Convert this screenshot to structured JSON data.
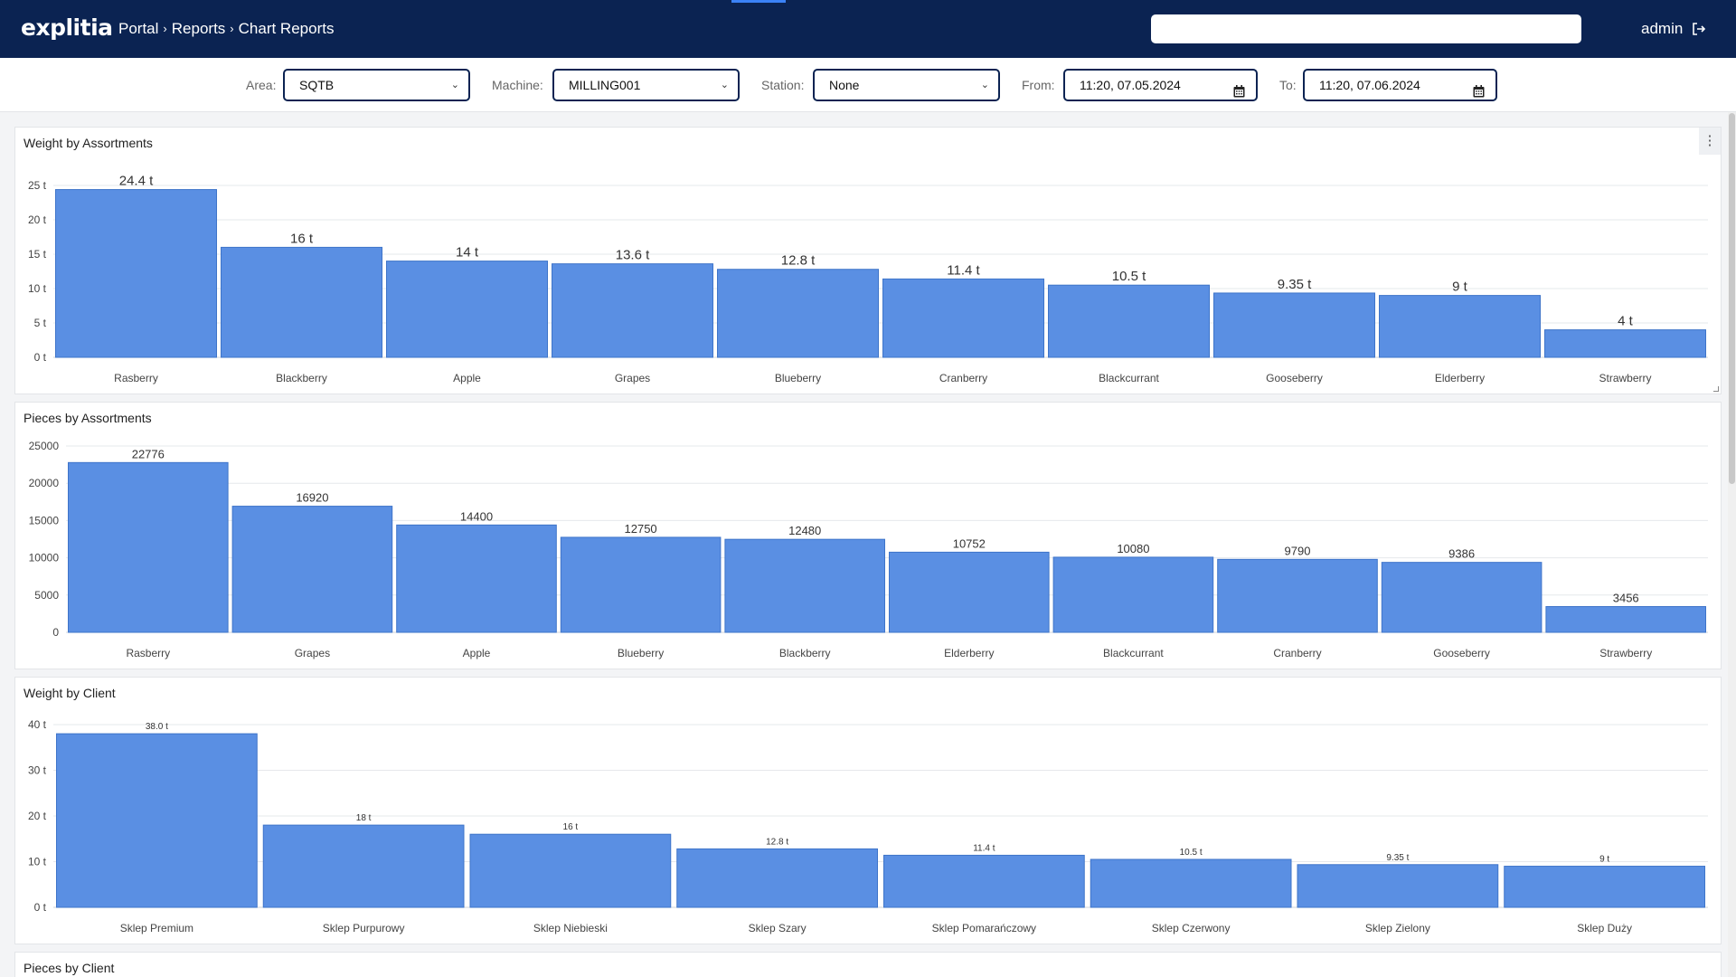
{
  "header": {
    "logo": "explitia",
    "breadcrumb": [
      "Portal",
      "Reports",
      "Chart Reports"
    ],
    "user": "admin",
    "search_value": ""
  },
  "filters": {
    "area": {
      "label": "Area:",
      "value": "SQTB"
    },
    "machine": {
      "label": "Machine:",
      "value": "MILLING001"
    },
    "station": {
      "label": "Station:",
      "value": "None"
    },
    "from": {
      "label": "From:",
      "value": "11:20, 07.05.2024"
    },
    "to": {
      "label": "To:",
      "value": "11:20, 07.06.2024"
    }
  },
  "colors": {
    "bar": "#5a8fe3",
    "bar_stroke": "#3e74c9",
    "header": "#0b2352"
  },
  "chart_data": [
    {
      "type": "bar",
      "title": "Weight by Assortments",
      "categories": [
        "Rasberry",
        "Blackberry",
        "Apple",
        "Grapes",
        "Blueberry",
        "Cranberry",
        "Blackcurrant",
        "Gooseberry",
        "Elderberry",
        "Strawberry"
      ],
      "values": [
        24.4,
        16,
        14,
        13.6,
        12.8,
        11.4,
        10.5,
        9.35,
        9,
        4
      ],
      "value_labels": [
        "24.4 t",
        "16 t",
        "14 t",
        "13.6 t",
        "12.8 t",
        "11.4 t",
        "10.5 t",
        "9.35 t",
        "9 t",
        "4 t"
      ],
      "yticks": [
        0,
        5,
        10,
        15,
        20,
        25
      ],
      "ytick_labels": [
        "0 t",
        "5 t",
        "10 t",
        "15 t",
        "20 t",
        "25 t"
      ],
      "ylim": [
        0,
        25
      ],
      "grid": true
    },
    {
      "type": "bar",
      "title": "Pieces by Assortments",
      "categories": [
        "Rasberry",
        "Grapes",
        "Apple",
        "Blueberry",
        "Blackberry",
        "Elderberry",
        "Blackcurrant",
        "Cranberry",
        "Gooseberry",
        "Strawberry"
      ],
      "values": [
        22776,
        16920,
        14400,
        12750,
        12480,
        10752,
        10080,
        9790,
        9386,
        3456
      ],
      "value_labels": [
        "22776",
        "16920",
        "14400",
        "12750",
        "12480",
        "10752",
        "10080",
        "9790",
        "9386",
        "3456"
      ],
      "yticks": [
        0,
        5000,
        10000,
        15000,
        20000,
        25000
      ],
      "ytick_labels": [
        "0",
        "5000",
        "10000",
        "15000",
        "20000",
        "25000"
      ],
      "ylim": [
        0,
        25000
      ],
      "grid": true
    },
    {
      "type": "bar",
      "title": "Weight by Client",
      "categories": [
        "Sklep Premium",
        "Sklep Purpurowy",
        "Sklep Niebieski",
        "Sklep Szary",
        "Sklep Pomarańczowy",
        "Sklep Czerwony",
        "Sklep Zielony",
        "Sklep Duży"
      ],
      "values": [
        38.0,
        18,
        16,
        12.8,
        11.4,
        10.5,
        9.35,
        9
      ],
      "value_labels": [
        "38.0 t",
        "18 t",
        "16 t",
        "12.8 t",
        "11.4 t",
        "10.5 t",
        "9.35 t",
        "9 t"
      ],
      "yticks": [
        0,
        10,
        20,
        30,
        40
      ],
      "ytick_labels": [
        "0 t",
        "10 t",
        "20 t",
        "30 t",
        "40 t"
      ],
      "ylim": [
        0,
        40
      ],
      "grid": true
    },
    {
      "type": "bar",
      "title": "Pieces by Client"
    }
  ]
}
